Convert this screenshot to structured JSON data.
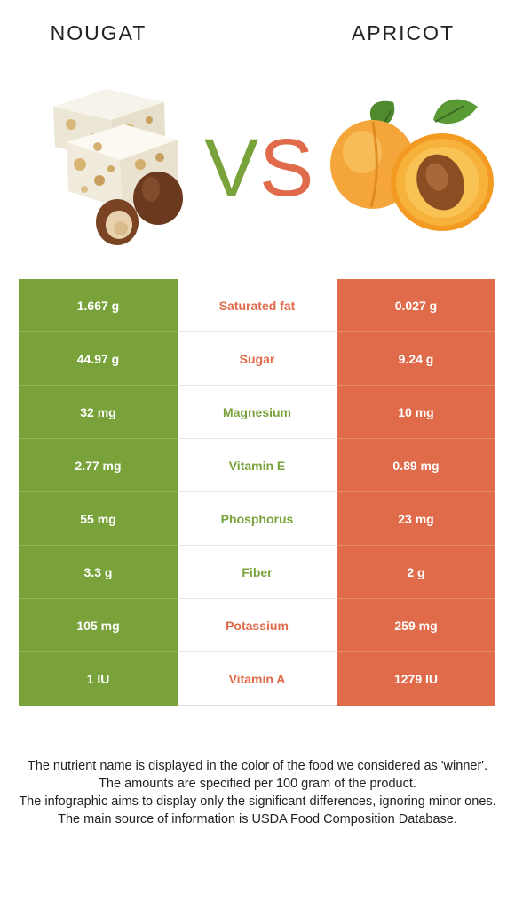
{
  "foods": {
    "left": {
      "name": "NOUGAT",
      "color": "#79a23a"
    },
    "right": {
      "name": "APRICOT",
      "color": "#e06b4b"
    }
  },
  "vs_text": {
    "v": "V",
    "s": "S"
  },
  "rows": [
    {
      "nutrient": "Saturated fat",
      "left": "1.667 g",
      "right": "0.027 g",
      "winner": "right"
    },
    {
      "nutrient": "Sugar",
      "left": "44.97 g",
      "right": "9.24 g",
      "winner": "right"
    },
    {
      "nutrient": "Magnesium",
      "left": "32 mg",
      "right": "10 mg",
      "winner": "left"
    },
    {
      "nutrient": "Vitamin E",
      "left": "2.77 mg",
      "right": "0.89 mg",
      "winner": "left"
    },
    {
      "nutrient": "Phosphorus",
      "left": "55 mg",
      "right": "23 mg",
      "winner": "left"
    },
    {
      "nutrient": "Fiber",
      "left": "3.3 g",
      "right": "2 g",
      "winner": "left"
    },
    {
      "nutrient": "Potassium",
      "left": "105 mg",
      "right": "259 mg",
      "winner": "right"
    },
    {
      "nutrient": "Vitamin A",
      "left": "1 IU",
      "right": "1279 IU",
      "winner": "right"
    }
  ],
  "footnote": {
    "line1": "The nutrient name is displayed in the color of the food we considered as 'winner'.",
    "line2": "The amounts are specified per 100 gram of the product.",
    "line3": "The infographic aims to display only the significant differences, ignoring minor ones.",
    "line4": "The main source of information is USDA Food Composition Database."
  }
}
